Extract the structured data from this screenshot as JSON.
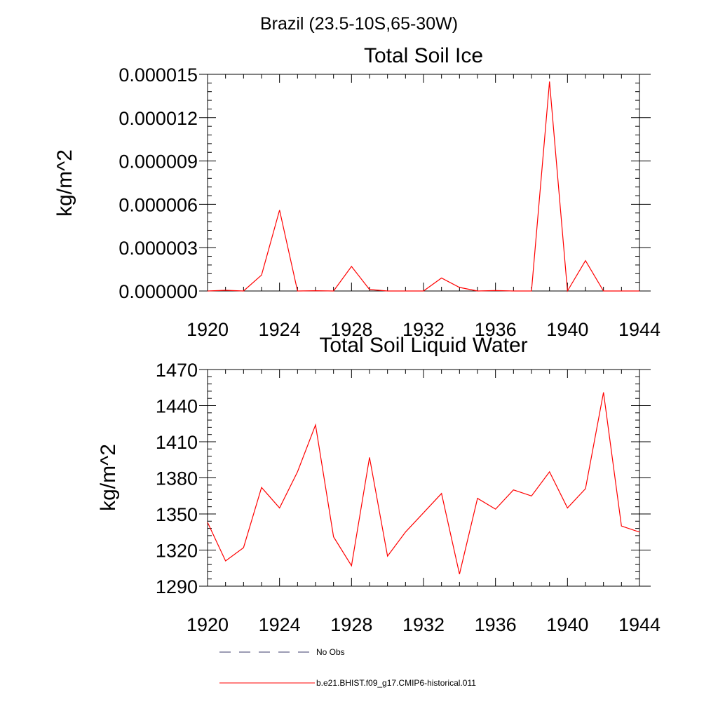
{
  "figure": {
    "title": "Brazil (23.5-10S,65-30W)"
  },
  "colors": {
    "series": "#ff0000",
    "obs": "#3a3a6a",
    "axes": "#000000"
  },
  "chart_data": [
    {
      "type": "line",
      "title": "Total Soil Ice",
      "ylabel": "kg/m^2",
      "xlabel": "",
      "xlim": [
        1920,
        1944
      ],
      "ylim": [
        0,
        1.5e-05
      ],
      "xticks": [
        1920,
        1924,
        1928,
        1932,
        1936,
        1940,
        1944
      ],
      "xtick_labels": [
        "1920",
        "1924",
        "1928",
        "1932",
        "1936",
        "1940",
        "1944"
      ],
      "yticks": [
        0,
        3e-06,
        6e-06,
        9e-06,
        1.2e-05,
        1.5e-05
      ],
      "ytick_labels": [
        "0.000000",
        "0.000003",
        "0.000006",
        "0.000009",
        "0.000012",
        "0.000015"
      ],
      "grid": false,
      "series": [
        {
          "name": "b.e21.BHIST.f09_g17.CMIP6-historical.011",
          "x": [
            1920,
            1921,
            1922,
            1923,
            1924,
            1925,
            1926,
            1927,
            1928,
            1929,
            1930,
            1931,
            1932,
            1933,
            1934,
            1935,
            1936,
            1937,
            1938,
            1939,
            1940,
            1941,
            1942,
            1943,
            1944
          ],
          "values": [
            0.0,
            5e-08,
            0.0,
            1.1e-06,
            5.6e-06,
            0.0,
            2e-08,
            0.0,
            1.7e-06,
            1e-07,
            0.0,
            0.0,
            0.0,
            9e-07,
            2.5e-07,
            0.0,
            3e-08,
            0.0,
            0.0,
            1.45e-05,
            0.0,
            2.1e-06,
            0.0,
            0.0,
            0.0
          ]
        }
      ]
    },
    {
      "type": "line",
      "title": "Total Soil Liquid Water",
      "ylabel": "kg/m^2",
      "xlabel": "",
      "xlim": [
        1920,
        1944
      ],
      "ylim": [
        1290,
        1470
      ],
      "xticks": [
        1920,
        1924,
        1928,
        1932,
        1936,
        1940,
        1944
      ],
      "xtick_labels": [
        "1920",
        "1924",
        "1928",
        "1932",
        "1936",
        "1940",
        "1944"
      ],
      "yticks": [
        1290,
        1320,
        1350,
        1380,
        1410,
        1440,
        1470
      ],
      "ytick_labels": [
        "1290",
        "1320",
        "1350",
        "1380",
        "1410",
        "1440",
        "1470"
      ],
      "grid": false,
      "series": [
        {
          "name": "b.e21.BHIST.f09_g17.CMIP6-historical.011",
          "x": [
            1920,
            1921,
            1922,
            1923,
            1924,
            1925,
            1926,
            1927,
            1928,
            1929,
            1930,
            1931,
            1932,
            1933,
            1934,
            1935,
            1936,
            1937,
            1938,
            1939,
            1940,
            1941,
            1942,
            1943,
            1944
          ],
          "values": [
            1343,
            1311,
            1322,
            1372,
            1355,
            1385,
            1424,
            1331,
            1307,
            1397,
            1315,
            1335,
            1351,
            1367,
            1300,
            1363,
            1354,
            1370,
            1365,
            1385,
            1355,
            1371,
            1451,
            1340,
            1335
          ]
        }
      ]
    }
  ],
  "legend": {
    "placement": "bottom",
    "entries": [
      {
        "label": "No Obs",
        "style": "dashed"
      },
      {
        "label": "b.e21.BHIST.f09_g17.CMIP6-historical.011",
        "style": "solid"
      }
    ]
  }
}
